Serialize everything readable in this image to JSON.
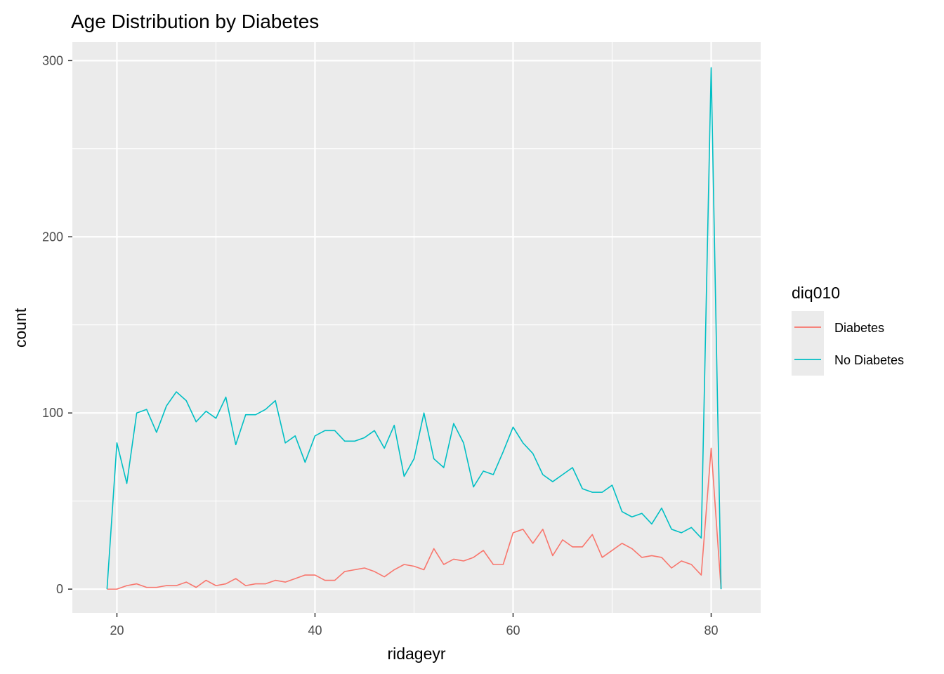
{
  "chart_data": {
    "type": "line",
    "title": "Age Distribution by Diabetes",
    "xlabel": "ridageyr",
    "ylabel": "count",
    "xlim": [
      15.5,
      85
    ],
    "ylim": [
      -13.5,
      310.5
    ],
    "x_ticks": [
      20,
      40,
      60,
      80
    ],
    "y_ticks": [
      0,
      100,
      200,
      300
    ],
    "x_tick_labels": [
      "20",
      "40",
      "60",
      "80"
    ],
    "y_tick_labels": [
      "0",
      "100",
      "200",
      "300"
    ],
    "grid": true,
    "legend": {
      "title": "diq010",
      "position": "right",
      "entries": [
        "Diabetes",
        "No Diabetes"
      ]
    },
    "x": [
      19,
      20,
      21,
      22,
      23,
      24,
      25,
      26,
      27,
      28,
      29,
      30,
      31,
      32,
      33,
      34,
      35,
      36,
      37,
      38,
      39,
      40,
      41,
      42,
      43,
      44,
      45,
      46,
      47,
      48,
      49,
      50,
      51,
      52,
      53,
      54,
      55,
      56,
      57,
      58,
      59,
      60,
      61,
      62,
      63,
      64,
      65,
      66,
      67,
      68,
      69,
      70,
      71,
      72,
      73,
      74,
      75,
      76,
      77,
      78,
      79,
      80,
      81
    ],
    "series": [
      {
        "name": "Diabetes",
        "color": "#F8766D",
        "values": [
          0,
          0,
          2,
          3,
          1,
          1,
          2,
          2,
          4,
          1,
          5,
          2,
          3,
          6,
          2,
          3,
          3,
          5,
          4,
          6,
          8,
          8,
          5,
          5,
          10,
          11,
          12,
          10,
          7,
          11,
          14,
          13,
          11,
          23,
          14,
          17,
          16,
          18,
          22,
          14,
          14,
          32,
          34,
          26,
          34,
          19,
          28,
          24,
          24,
          31,
          18,
          22,
          26,
          23,
          18,
          19,
          18,
          12,
          16,
          14,
          8,
          80,
          0
        ]
      },
      {
        "name": "No Diabetes",
        "color": "#00BFC4",
        "values": [
          0,
          83,
          60,
          100,
          102,
          89,
          104,
          112,
          107,
          95,
          101,
          97,
          109,
          82,
          99,
          99,
          102,
          107,
          83,
          87,
          72,
          87,
          90,
          90,
          84,
          84,
          86,
          90,
          80,
          93,
          64,
          74,
          100,
          74,
          69,
          94,
          83,
          58,
          67,
          65,
          78,
          92,
          83,
          77,
          65,
          61,
          65,
          69,
          57,
          55,
          55,
          59,
          44,
          41,
          43,
          37,
          46,
          34,
          32,
          35,
          29,
          296,
          0
        ]
      }
    ]
  },
  "colors": {
    "panel_background": "#EBEBEB",
    "grid_line": "#FFFFFF",
    "legend_key_background": "#EBEBEB"
  }
}
